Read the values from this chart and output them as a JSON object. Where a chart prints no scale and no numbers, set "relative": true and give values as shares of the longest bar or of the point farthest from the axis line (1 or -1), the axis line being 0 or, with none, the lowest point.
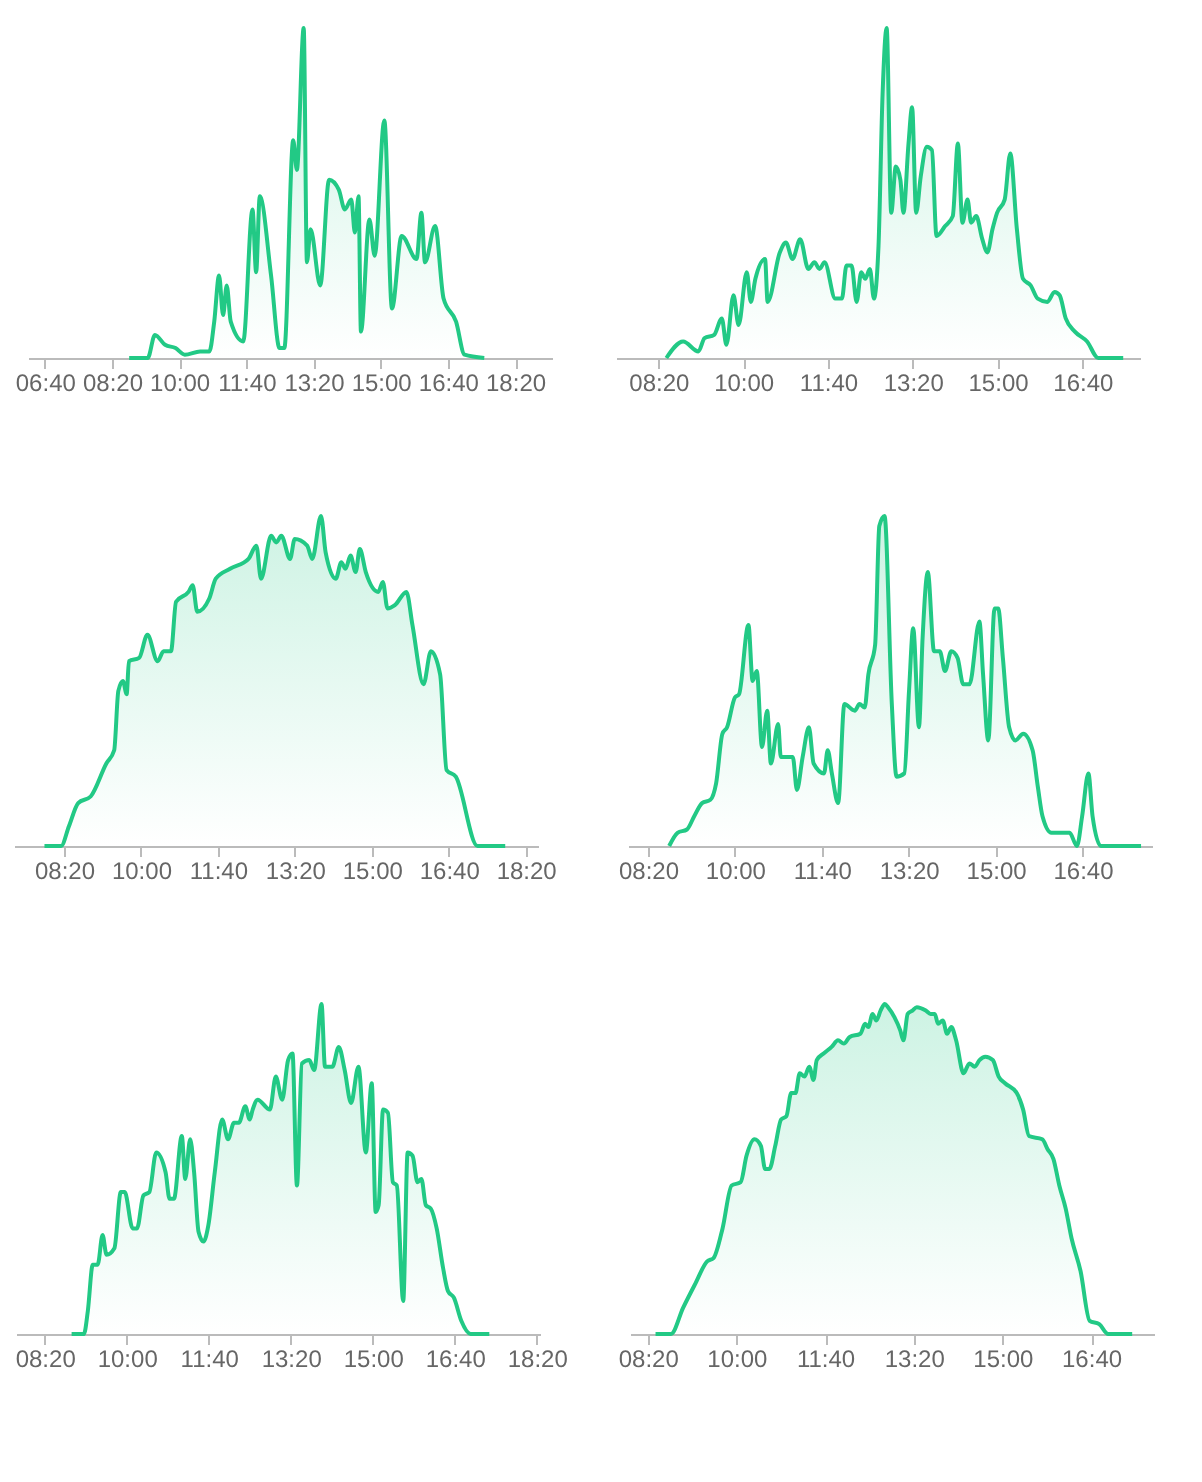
{
  "chart_data": [
    {
      "type": "area",
      "relative": true,
      "color": "#22c985",
      "xlim": [
        6.25,
        19.25
      ],
      "xticks": [
        {
          "value": 6.6667,
          "label": "06:40"
        },
        {
          "value": 8.3333,
          "label": "08:20"
        },
        {
          "value": 10,
          "label": "10:00"
        },
        {
          "value": 11.6667,
          "label": "11:40"
        },
        {
          "value": 13.3333,
          "label": "13:20"
        },
        {
          "value": 15,
          "label": "15:00"
        },
        {
          "value": 16.6667,
          "label": "16:40"
        },
        {
          "value": 18.3333,
          "label": "18:20"
        }
      ],
      "x": [
        8.76,
        9.22,
        9.4,
        9.65,
        9.91,
        10.14,
        10.52,
        10.75,
        10.87,
        10.99,
        11.09,
        11.18,
        11.28,
        11.59,
        11.82,
        11.91,
        12.0,
        12.28,
        12.49,
        12.61,
        12.83,
        12.92,
        13.09,
        13.17,
        13.26,
        13.5,
        13.72,
        13.96,
        14.11,
        14.27,
        14.36,
        14.45,
        14.51,
        14.72,
        14.85,
        15.09,
        15.28,
        15.52,
        15.89,
        16.01,
        16.1,
        16.35,
        16.56,
        16.87,
        17.08,
        17.57
      ],
      "values": [
        0,
        0,
        0.07,
        0.04,
        0.03,
        0.01,
        0.02,
        0.02,
        0.11,
        0.25,
        0.13,
        0.22,
        0.11,
        0.05,
        0.45,
        0.26,
        0.49,
        0.25,
        0.03,
        0.03,
        0.66,
        0.57,
        1,
        0.29,
        0.39,
        0.22,
        0.54,
        0.51,
        0.45,
        0.48,
        0.38,
        0.49,
        0.08,
        0.42,
        0.31,
        0.72,
        0.15,
        0.37,
        0.3,
        0.44,
        0.29,
        0.4,
        0.18,
        0.11,
        0.01,
        0
      ]
    },
    {
      "type": "area",
      "relative": true,
      "color": "#22c985",
      "xlim": [
        7.5,
        17.8
      ],
      "xticks": [
        {
          "value": 8.3333,
          "label": "08:20"
        },
        {
          "value": 10,
          "label": "10:00"
        },
        {
          "value": 11.6667,
          "label": "11:40"
        },
        {
          "value": 13.3333,
          "label": "13:20"
        },
        {
          "value": 15,
          "label": "15:00"
        },
        {
          "value": 16.6667,
          "label": "16:40"
        }
      ],
      "x": [
        8.49,
        8.82,
        9.12,
        9.24,
        9.43,
        9.58,
        9.67,
        9.81,
        9.91,
        10.07,
        10.15,
        10.24,
        10.43,
        10.48,
        10.72,
        10.84,
        10.97,
        11.12,
        11.28,
        11.4,
        11.5,
        11.6,
        11.81,
        11.94,
        12.03,
        12.13,
        12.23,
        12.32,
        12.4,
        12.49,
        12.57,
        12.66,
        12.74,
        12.82,
        12.91,
        13.0,
        13.09,
        13.15,
        13.25,
        13.32,
        13.4,
        13.49,
        13.61,
        13.71,
        13.8,
        13.97,
        14.12,
        14.22,
        14.31,
        14.41,
        14.48,
        14.58,
        14.7,
        14.8,
        14.9,
        14.99,
        15.14,
        15.25,
        15.38,
        15.5,
        15.65,
        15.79,
        15.98,
        16.12,
        16.22,
        16.34,
        16.52,
        16.76,
        16.98,
        17.47
      ],
      "values": [
        0,
        0.05,
        0.02,
        0.06,
        0.07,
        0.12,
        0.04,
        0.19,
        0.1,
        0.26,
        0.17,
        0.24,
        0.3,
        0.17,
        0.32,
        0.35,
        0.3,
        0.36,
        0.27,
        0.29,
        0.27,
        0.29,
        0.18,
        0.18,
        0.28,
        0.28,
        0.17,
        0.26,
        0.24,
        0.27,
        0.18,
        0.34,
        0.8,
        1,
        0.44,
        0.58,
        0.54,
        0.44,
        0.65,
        0.76,
        0.44,
        0.55,
        0.64,
        0.63,
        0.37,
        0.4,
        0.43,
        0.65,
        0.41,
        0.48,
        0.41,
        0.43,
        0.36,
        0.32,
        0.39,
        0.44,
        0.48,
        0.62,
        0.39,
        0.24,
        0.22,
        0.18,
        0.17,
        0.2,
        0.19,
        0.12,
        0.08,
        0.05,
        0,
        0
      ]
    },
    {
      "type": "area",
      "relative": true,
      "color": "#22c985",
      "xlim": [
        7.25,
        18.6
      ],
      "xticks": [
        {
          "value": 8.3333,
          "label": "08:20"
        },
        {
          "value": 10,
          "label": "10:00"
        },
        {
          "value": 11.6667,
          "label": "11:40"
        },
        {
          "value": 13.3333,
          "label": "13:20"
        },
        {
          "value": 15,
          "label": "15:00"
        },
        {
          "value": 16.6667,
          "label": "16:40"
        },
        {
          "value": 18.3333,
          "label": "18:20"
        }
      ],
      "x": [
        7.91,
        8.27,
        8.44,
        8.64,
        8.91,
        9.25,
        9.42,
        9.51,
        9.61,
        9.69,
        9.74,
        9.96,
        10.14,
        10.36,
        10.49,
        10.65,
        10.76,
        11.03,
        11.12,
        11.22,
        11.48,
        11.62,
        11.93,
        12.33,
        12.5,
        12.6,
        12.82,
        12.93,
        13.04,
        13.23,
        13.33,
        13.6,
        13.71,
        13.9,
        14.0,
        14.22,
        14.34,
        14.43,
        14.54,
        14.65,
        14.74,
        14.87,
        15.14,
        15.24,
        15.34,
        15.5,
        15.75,
        15.88,
        16.12,
        16.28,
        16.48,
        16.62,
        16.82,
        17.29,
        17.89
      ],
      "values": [
        0,
        0,
        0.06,
        0.13,
        0.15,
        0.25,
        0.29,
        0.47,
        0.5,
        0.46,
        0.56,
        0.57,
        0.64,
        0.56,
        0.59,
        0.59,
        0.74,
        0.77,
        0.79,
        0.71,
        0.75,
        0.81,
        0.84,
        0.87,
        0.91,
        0.81,
        0.94,
        0.92,
        0.94,
        0.87,
        0.93,
        0.91,
        0.87,
        1,
        0.89,
        0.81,
        0.86,
        0.84,
        0.88,
        0.83,
        0.9,
        0.83,
        0.77,
        0.8,
        0.72,
        0.73,
        0.77,
        0.67,
        0.49,
        0.59,
        0.52,
        0.23,
        0.21,
        0,
        0
      ]
    },
    {
      "type": "area",
      "relative": true,
      "color": "#22c985",
      "xlim": [
        7.95,
        18.0
      ],
      "xticks": [
        {
          "value": 8.3333,
          "label": "08:20"
        },
        {
          "value": 10,
          "label": "10:00"
        },
        {
          "value": 11.6667,
          "label": "11:40"
        },
        {
          "value": 13.3333,
          "label": "13:20"
        },
        {
          "value": 15,
          "label": "15:00"
        },
        {
          "value": 16.6667,
          "label": "16:40"
        }
      ],
      "x": [
        8.74,
        8.9,
        9.08,
        9.22,
        9.37,
        9.53,
        9.64,
        9.76,
        9.85,
        10.0,
        10.08,
        10.26,
        10.34,
        10.42,
        10.52,
        10.62,
        10.69,
        10.83,
        10.88,
        11.11,
        11.19,
        11.3,
        11.42,
        11.51,
        11.71,
        11.78,
        11.86,
        11.98,
        12.1,
        12.3,
        12.39,
        12.49,
        12.56,
        12.69,
        12.77,
        12.87,
        13.01,
        13.1,
        13.25,
        13.34,
        13.42,
        13.53,
        13.6,
        13.7,
        13.82,
        13.93,
        14.03,
        14.15,
        14.27,
        14.38,
        14.5,
        14.69,
        14.76,
        14.86,
        14.98,
        15.05,
        15.14,
        15.26,
        15.38,
        15.53,
        15.71,
        15.81,
        15.9,
        16.07,
        16.42,
        16.56,
        16.66,
        16.78,
        16.86,
        17.02,
        17.79
      ],
      "values": [
        0,
        0.04,
        0.05,
        0.09,
        0.13,
        0.14,
        0.19,
        0.34,
        0.36,
        0.45,
        0.46,
        0.67,
        0.5,
        0.53,
        0.3,
        0.41,
        0.25,
        0.37,
        0.27,
        0.27,
        0.17,
        0.27,
        0.36,
        0.25,
        0.22,
        0.29,
        0.22,
        0.13,
        0.43,
        0.41,
        0.43,
        0.42,
        0.52,
        0.61,
        0.97,
        1,
        0.43,
        0.21,
        0.22,
        0.47,
        0.66,
        0.36,
        0.63,
        0.83,
        0.59,
        0.59,
        0.53,
        0.59,
        0.57,
        0.49,
        0.49,
        0.68,
        0.52,
        0.32,
        0.72,
        0.72,
        0.57,
        0.36,
        0.32,
        0.34,
        0.29,
        0.18,
        0.09,
        0.04,
        0.04,
        0,
        0.09,
        0.22,
        0.09,
        0,
        0
      ]
    },
    {
      "type": "area",
      "relative": true,
      "color": "#22c985",
      "xlim": [
        7.75,
        18.4
      ],
      "xticks": [
        {
          "value": 8.3333,
          "label": "08:20"
        },
        {
          "value": 10,
          "label": "10:00"
        },
        {
          "value": 11.6667,
          "label": "11:40"
        },
        {
          "value": 13.3333,
          "label": "13:20"
        },
        {
          "value": 15,
          "label": "15:00"
        },
        {
          "value": 16.6667,
          "label": "16:40"
        },
        {
          "value": 18.3333,
          "label": "18:20"
        }
      ],
      "x": [
        8.88,
        9.13,
        9.21,
        9.31,
        9.41,
        9.51,
        9.59,
        9.75,
        9.88,
        9.96,
        10.12,
        10.21,
        10.34,
        10.46,
        10.6,
        10.79,
        10.87,
        10.96,
        11.12,
        11.19,
        11.29,
        11.37,
        11.46,
        11.56,
        11.66,
        11.79,
        11.94,
        12.06,
        12.18,
        12.28,
        12.41,
        12.5,
        12.56,
        12.66,
        12.91,
        13.03,
        13.16,
        13.28,
        13.37,
        13.46,
        13.56,
        13.71,
        13.81,
        13.96,
        14.03,
        14.18,
        14.31,
        14.43,
        14.56,
        14.71,
        14.86,
        14.98,
        15.06,
        15.12,
        15.21,
        15.31,
        15.41,
        15.49,
        15.62,
        15.71,
        15.81,
        15.91,
        15.99,
        16.08,
        16.18,
        16.3,
        16.43,
        16.53,
        16.65,
        16.8,
        16.99,
        17.37
      ],
      "values": [
        0,
        0,
        0.07,
        0.21,
        0.21,
        0.3,
        0.24,
        0.26,
        0.43,
        0.43,
        0.32,
        0.32,
        0.42,
        0.43,
        0.55,
        0.49,
        0.41,
        0.41,
        0.6,
        0.47,
        0.59,
        0.49,
        0.31,
        0.28,
        0.33,
        0.49,
        0.65,
        0.59,
        0.64,
        0.64,
        0.69,
        0.65,
        0.68,
        0.71,
        0.68,
        0.78,
        0.71,
        0.83,
        0.85,
        0.45,
        0.82,
        0.83,
        0.8,
        1,
        0.81,
        0.81,
        0.87,
        0.8,
        0.7,
        0.81,
        0.55,
        0.76,
        0.37,
        0.39,
        0.68,
        0.67,
        0.46,
        0.45,
        0.1,
        0.55,
        0.54,
        0.46,
        0.47,
        0.39,
        0.38,
        0.32,
        0.2,
        0.13,
        0.11,
        0.04,
        0,
        0
      ]
    },
    {
      "type": "area",
      "relative": true,
      "color": "#22c985",
      "xlim": [
        8.0,
        17.85
      ],
      "xticks": [
        {
          "value": 8.3333,
          "label": "08:20"
        },
        {
          "value": 10,
          "label": "10:00"
        },
        {
          "value": 11.6667,
          "label": "11:40"
        },
        {
          "value": 13.3333,
          "label": "13:20"
        },
        {
          "value": 15,
          "label": "15:00"
        },
        {
          "value": 16.6667,
          "label": "16:40"
        }
      ],
      "x": [
        8.48,
        8.77,
        9.0,
        9.22,
        9.45,
        9.57,
        9.74,
        9.91,
        10.08,
        10.19,
        10.34,
        10.46,
        10.54,
        10.62,
        10.73,
        10.84,
        10.94,
        11.03,
        11.11,
        11.19,
        11.28,
        11.37,
        11.45,
        11.51,
        11.64,
        11.79,
        11.91,
        12.02,
        12.13,
        12.33,
        12.42,
        12.48,
        12.56,
        12.63,
        12.71,
        12.79,
        12.85,
        12.97,
        13.08,
        13.14,
        13.22,
        13.31,
        13.39,
        13.56,
        13.65,
        13.73,
        13.79,
        13.88,
        13.96,
        14.04,
        14.13,
        14.27,
        14.38,
        14.48,
        14.57,
        14.68,
        14.82,
        14.93,
        15.05,
        15.27,
        15.39,
        15.5,
        15.75,
        15.85,
        15.96,
        16.07,
        16.19,
        16.3,
        16.47,
        16.64,
        16.82,
        16.99,
        17.44
      ],
      "values": [
        0,
        0,
        0.08,
        0.15,
        0.22,
        0.23,
        0.32,
        0.45,
        0.46,
        0.54,
        0.59,
        0.57,
        0.5,
        0.5,
        0.57,
        0.65,
        0.66,
        0.73,
        0.73,
        0.79,
        0.78,
        0.81,
        0.77,
        0.83,
        0.85,
        0.87,
        0.89,
        0.88,
        0.9,
        0.91,
        0.94,
        0.93,
        0.97,
        0.95,
        0.98,
        1,
        0.99,
        0.96,
        0.92,
        0.89,
        0.97,
        0.98,
        0.99,
        0.98,
        0.97,
        0.97,
        0.94,
        0.95,
        0.91,
        0.93,
        0.89,
        0.79,
        0.82,
        0.81,
        0.83,
        0.84,
        0.83,
        0.78,
        0.76,
        0.73,
        0.68,
        0.6,
        0.59,
        0.56,
        0.53,
        0.45,
        0.38,
        0.29,
        0.19,
        0.04,
        0.03,
        0,
        0
      ]
    }
  ]
}
